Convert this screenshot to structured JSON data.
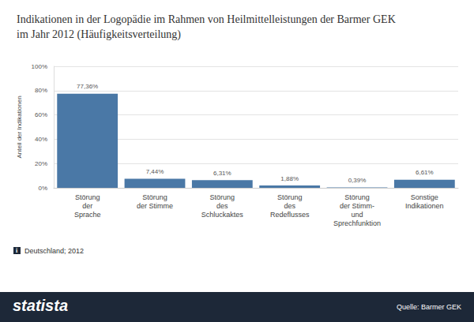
{
  "chart_data": {
    "type": "bar",
    "title": "Indikationen in der Logopädie im Rahmen von Heilmittelleistungen der Barmer GEK\nim Jahr 2012 (Häufigkeitsverteilung)",
    "y_label": "Anteil der Indikationen",
    "categories": [
      "Störung\nder\nSprache",
      "Störung\nder Stimme",
      "Störung\ndes\nSchluckaktes",
      "Störung\ndes\nRedeflusses",
      "Störung\nder Stimm-\nund\nSprechfunktion",
      "Sonstige\nIndikationen"
    ],
    "values": [
      77.36,
      7.44,
      6.31,
      1.88,
      0.39,
      6.61
    ],
    "value_labels": [
      "77,36%",
      "7,44%",
      "6,31%",
      "1,88%",
      "0,39%",
      "6,61%"
    ],
    "data_labels": true,
    "color": "#4a78a6",
    "ylim": [
      0,
      100
    ],
    "yticks": [
      {
        "value": 0,
        "label": "0%"
      },
      {
        "value": 20,
        "label": "20%"
      },
      {
        "value": 40,
        "label": "40%"
      },
      {
        "value": 60,
        "label": "60%"
      },
      {
        "value": 80,
        "label": "80%"
      },
      {
        "value": 100,
        "label": "100%"
      }
    ],
    "grid": true,
    "note": "Deutschland; 2012",
    "logo": "statista",
    "source": "Quelle: Barmer GEK"
  }
}
